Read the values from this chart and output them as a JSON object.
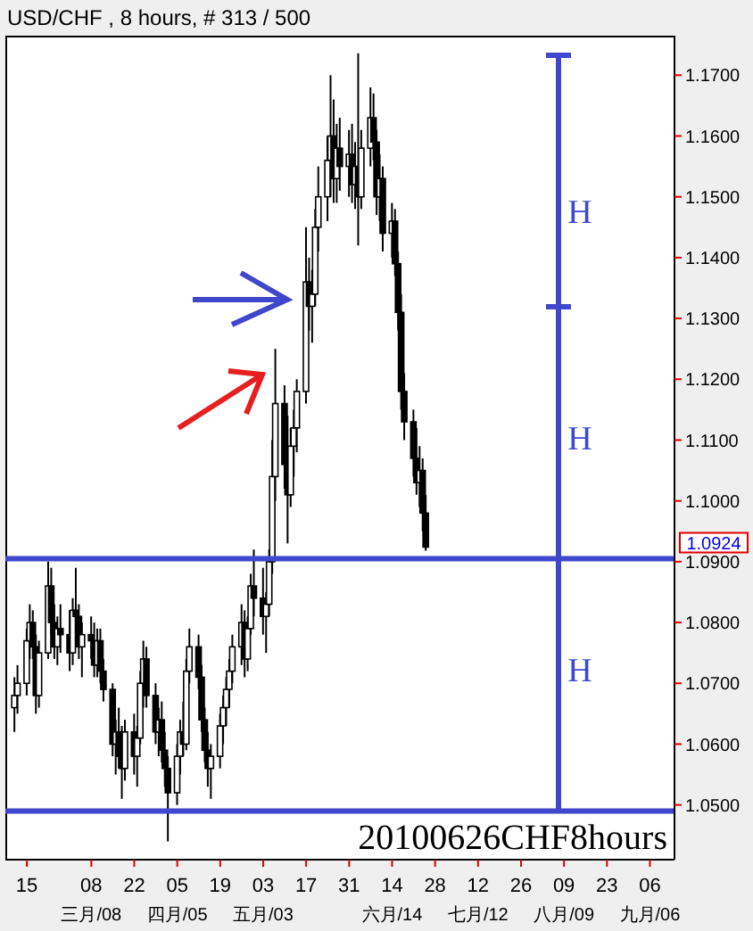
{
  "chart_data": {
    "type": "candlestick",
    "title": "USD/CHF , 8 hours, # 313 / 500",
    "color": "#000000",
    "x": [
      "2010-02-11",
      "2010-02-12",
      "2010-02-15",
      "2010-02-16",
      "2010-02-17",
      "2010-02-18",
      "2010-02-19",
      "2010-02-22",
      "2010-02-23",
      "2010-02-24",
      "2010-02-25",
      "2010-02-26",
      "2010-03-01",
      "2010-03-02",
      "2010-03-03",
      "2010-03-04",
      "2010-03-05",
      "2010-03-08",
      "2010-03-09",
      "2010-03-10",
      "2010-03-11",
      "2010-03-12",
      "2010-03-15",
      "2010-03-16",
      "2010-03-17",
      "2010-03-18",
      "2010-03-19",
      "2010-03-22",
      "2010-03-23",
      "2010-03-24",
      "2010-03-25",
      "2010-03-26",
      "2010-03-29",
      "2010-03-30",
      "2010-03-31",
      "2010-04-01",
      "2010-04-02",
      "2010-04-05",
      "2010-04-06",
      "2010-04-07",
      "2010-04-08",
      "2010-04-09",
      "2010-04-12",
      "2010-04-13",
      "2010-04-14",
      "2010-04-15",
      "2010-04-16",
      "2010-04-19",
      "2010-04-20",
      "2010-04-21",
      "2010-04-22",
      "2010-04-23",
      "2010-04-26",
      "2010-04-27",
      "2010-04-28",
      "2010-04-29",
      "2010-04-30",
      "2010-05-03",
      "2010-05-04",
      "2010-05-05",
      "2010-05-06",
      "2010-05-07",
      "2010-05-10",
      "2010-05-11",
      "2010-05-12",
      "2010-05-13",
      "2010-05-14",
      "2010-05-17",
      "2010-05-18",
      "2010-05-19",
      "2010-05-20",
      "2010-05-21",
      "2010-05-24",
      "2010-05-25",
      "2010-05-26",
      "2010-05-27",
      "2010-05-28",
      "2010-05-31",
      "2010-06-01",
      "2010-06-02",
      "2010-06-03",
      "2010-06-04",
      "2010-06-07",
      "2010-06-08",
      "2010-06-09",
      "2010-06-10",
      "2010-06-11",
      "2010-06-14",
      "2010-06-15",
      "2010-06-16",
      "2010-06-17",
      "2010-06-18",
      "2010-06-21",
      "2010-06-22",
      "2010-06-23",
      "2010-06-24",
      "2010-06-25"
    ],
    "ohlc": [
      [
        1.066,
        1.071,
        1.062,
        1.068
      ],
      [
        1.068,
        1.073,
        1.065,
        1.07
      ],
      [
        1.07,
        1.079,
        1.068,
        1.077
      ],
      [
        1.077,
        1.083,
        1.074,
        1.08
      ],
      [
        1.08,
        1.082,
        1.074,
        1.076
      ],
      [
        1.076,
        1.078,
        1.065,
        1.068
      ],
      [
        1.068,
        1.077,
        1.066,
        1.075
      ],
      [
        1.075,
        1.09,
        1.074,
        1.086
      ],
      [
        1.086,
        1.089,
        1.078,
        1.08
      ],
      [
        1.08,
        1.083,
        1.074,
        1.076
      ],
      [
        1.076,
        1.081,
        1.073,
        1.079
      ],
      [
        1.079,
        1.083,
        1.075,
        1.078
      ],
      [
        1.078,
        1.082,
        1.072,
        1.075
      ],
      [
        1.075,
        1.084,
        1.073,
        1.082
      ],
      [
        1.082,
        1.089,
        1.079,
        1.081
      ],
      [
        1.081,
        1.083,
        1.074,
        1.076
      ],
      [
        1.076,
        1.08,
        1.071,
        1.078
      ],
      [
        1.078,
        1.081,
        1.074,
        1.077
      ],
      [
        1.077,
        1.08,
        1.071,
        1.073
      ],
      [
        1.073,
        1.079,
        1.071,
        1.077
      ],
      [
        1.077,
        1.079,
        1.07,
        1.072
      ],
      [
        1.072,
        1.074,
        1.067,
        1.069
      ],
      [
        1.069,
        1.07,
        1.058,
        1.06
      ],
      [
        1.06,
        1.064,
        1.055,
        1.062
      ],
      [
        1.062,
        1.066,
        1.056,
        1.058
      ],
      [
        1.058,
        1.063,
        1.051,
        1.056
      ],
      [
        1.056,
        1.064,
        1.054,
        1.062
      ],
      [
        1.062,
        1.065,
        1.055,
        1.058
      ],
      [
        1.058,
        1.063,
        1.053,
        1.061
      ],
      [
        1.061,
        1.072,
        1.06,
        1.07
      ],
      [
        1.07,
        1.077,
        1.066,
        1.074
      ],
      [
        1.074,
        1.076,
        1.066,
        1.068
      ],
      [
        1.068,
        1.07,
        1.06,
        1.062
      ],
      [
        1.062,
        1.066,
        1.058,
        1.064
      ],
      [
        1.064,
        1.067,
        1.057,
        1.059
      ],
      [
        1.059,
        1.062,
        1.053,
        1.056
      ],
      [
        1.056,
        1.058,
        1.044,
        1.052
      ],
      [
        1.052,
        1.06,
        1.05,
        1.058
      ],
      [
        1.058,
        1.064,
        1.055,
        1.062
      ],
      [
        1.062,
        1.067,
        1.058,
        1.06
      ],
      [
        1.06,
        1.074,
        1.059,
        1.072
      ],
      [
        1.072,
        1.079,
        1.07,
        1.076
      ],
      [
        1.076,
        1.078,
        1.069,
        1.071
      ],
      [
        1.071,
        1.073,
        1.062,
        1.064
      ],
      [
        1.064,
        1.066,
        1.057,
        1.059
      ],
      [
        1.059,
        1.062,
        1.053,
        1.056
      ],
      [
        1.056,
        1.06,
        1.051,
        1.058
      ],
      [
        1.058,
        1.065,
        1.056,
        1.063
      ],
      [
        1.063,
        1.068,
        1.06,
        1.066
      ],
      [
        1.066,
        1.071,
        1.063,
        1.069
      ],
      [
        1.069,
        1.074,
        1.066,
        1.072
      ],
      [
        1.072,
        1.078,
        1.07,
        1.076
      ],
      [
        1.076,
        1.083,
        1.073,
        1.08
      ],
      [
        1.08,
        1.082,
        1.071,
        1.074
      ],
      [
        1.074,
        1.081,
        1.072,
        1.079
      ],
      [
        1.079,
        1.088,
        1.078,
        1.086
      ],
      [
        1.086,
        1.092,
        1.081,
        1.084
      ],
      [
        1.084,
        1.089,
        1.078,
        1.081
      ],
      [
        1.081,
        1.085,
        1.075,
        1.083
      ],
      [
        1.083,
        1.092,
        1.081,
        1.09
      ],
      [
        1.09,
        1.11,
        1.088,
        1.104
      ],
      [
        1.104,
        1.125,
        1.1,
        1.116
      ],
      [
        1.116,
        1.119,
        1.102,
        1.106
      ],
      [
        1.106,
        1.114,
        1.093,
        1.101
      ],
      [
        1.101,
        1.112,
        1.099,
        1.109
      ],
      [
        1.109,
        1.115,
        1.104,
        1.112
      ],
      [
        1.112,
        1.12,
        1.108,
        1.118
      ],
      [
        1.118,
        1.145,
        1.116,
        1.136
      ],
      [
        1.136,
        1.14,
        1.128,
        1.132
      ],
      [
        1.132,
        1.138,
        1.126,
        1.134
      ],
      [
        1.134,
        1.148,
        1.132,
        1.145
      ],
      [
        1.145,
        1.155,
        1.141,
        1.15
      ],
      [
        1.15,
        1.16,
        1.146,
        1.156
      ],
      [
        1.156,
        1.17,
        1.15,
        1.16
      ],
      [
        1.16,
        1.166,
        1.149,
        1.153
      ],
      [
        1.153,
        1.162,
        1.149,
        1.158
      ],
      [
        1.158,
        1.163,
        1.151,
        1.155
      ],
      [
        1.155,
        1.161,
        1.15,
        1.157
      ],
      [
        1.157,
        1.162,
        1.149,
        1.152
      ],
      [
        1.152,
        1.159,
        1.148,
        1.155
      ],
      [
        1.155,
        1.1736,
        1.142,
        1.15
      ],
      [
        1.15,
        1.161,
        1.148,
        1.158
      ],
      [
        1.158,
        1.168,
        1.155,
        1.163
      ],
      [
        1.163,
        1.167,
        1.156,
        1.159
      ],
      [
        1.159,
        1.161,
        1.147,
        1.15
      ],
      [
        1.15,
        1.157,
        1.146,
        1.153
      ],
      [
        1.153,
        1.155,
        1.141,
        1.144
      ],
      [
        1.144,
        1.149,
        1.14,
        1.146
      ],
      [
        1.146,
        1.148,
        1.137,
        1.139
      ],
      [
        1.139,
        1.141,
        1.128,
        1.131
      ],
      [
        1.131,
        1.134,
        1.115,
        1.118
      ],
      [
        1.118,
        1.121,
        1.11,
        1.113
      ],
      [
        1.113,
        1.115,
        1.104,
        1.107
      ],
      [
        1.107,
        1.112,
        1.101,
        1.103
      ],
      [
        1.103,
        1.109,
        1.099,
        1.105
      ],
      [
        1.105,
        1.107,
        1.095,
        1.098
      ],
      [
        1.098,
        1.101,
        1.0918,
        1.0924
      ]
    ],
    "xlim": [
      "2010-02-08",
      "2010-09-14"
    ],
    "xticks": [
      {
        "value": "2010-02-15",
        "label": "15"
      },
      {
        "value": "2010-03-08",
        "label": "08\n三月/08"
      },
      {
        "value": "2010-03-22",
        "label": "22"
      },
      {
        "value": "2010-04-05",
        "label": "05\n四月/05"
      },
      {
        "value": "2010-04-19",
        "label": "19"
      },
      {
        "value": "2010-05-03",
        "label": "03\n五月/03"
      },
      {
        "value": "2010-05-17",
        "label": "17"
      },
      {
        "value": "2010-05-31",
        "label": "31"
      },
      {
        "value": "2010-06-14",
        "label": "14\n六月/14"
      },
      {
        "value": "2010-06-28",
        "label": "28"
      },
      {
        "value": "2010-07-12",
        "label": "12\n七月/12"
      },
      {
        "value": "2010-07-26",
        "label": "26"
      },
      {
        "value": "2010-08-09",
        "label": "09\n八月/09"
      },
      {
        "value": "2010-08-23",
        "label": "23"
      },
      {
        "value": "2010-09-06",
        "label": "06\n九月/06"
      }
    ],
    "ylim": [
      1.041,
      1.1765
    ],
    "yticks": [
      {
        "value": 1.05,
        "label": "1.0500"
      },
      {
        "value": 1.06,
        "label": "1.0600"
      },
      {
        "value": 1.07,
        "label": "1.0700"
      },
      {
        "value": 1.08,
        "label": "1.0800"
      },
      {
        "value": 1.09,
        "label": "1.0900"
      },
      {
        "value": 1.1,
        "label": "1.1000"
      },
      {
        "value": 1.11,
        "label": "1.1100"
      },
      {
        "value": 1.12,
        "label": "1.1200"
      },
      {
        "value": 1.13,
        "label": "1.1300"
      },
      {
        "value": 1.14,
        "label": "1.1400"
      },
      {
        "value": 1.15,
        "label": "1.1500"
      },
      {
        "value": 1.16,
        "label": "1.1600"
      },
      {
        "value": 1.17,
        "label": "1.1700"
      }
    ],
    "ref_lines": [
      {
        "axis": "y",
        "value": 1.0905,
        "color": "#3f48cc"
      },
      {
        "axis": "y",
        "value": 1.049,
        "color": "#3f48cc"
      }
    ],
    "annotations": [
      "H",
      "H",
      "H",
      "1.0924",
      "20100626CHF8hours"
    ]
  }
}
